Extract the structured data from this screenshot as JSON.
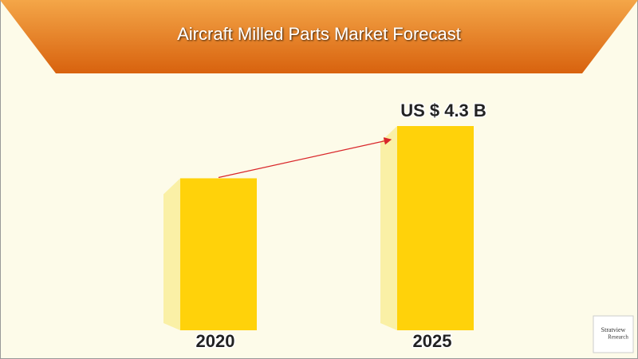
{
  "chart_data": {
    "type": "bar",
    "title": "Aircraft Milled Parts Market Forecast",
    "categories": [
      "2020",
      "2025"
    ],
    "values": [
      3.2,
      4.3
    ],
    "value_labels": [
      null,
      "US $ 4.3 B"
    ],
    "color": "#ffd20a",
    "side_color": "#faf0a6",
    "arrow_color": "#d9262a"
  },
  "logo": {
    "name": "Stratview",
    "sub": "Research"
  }
}
